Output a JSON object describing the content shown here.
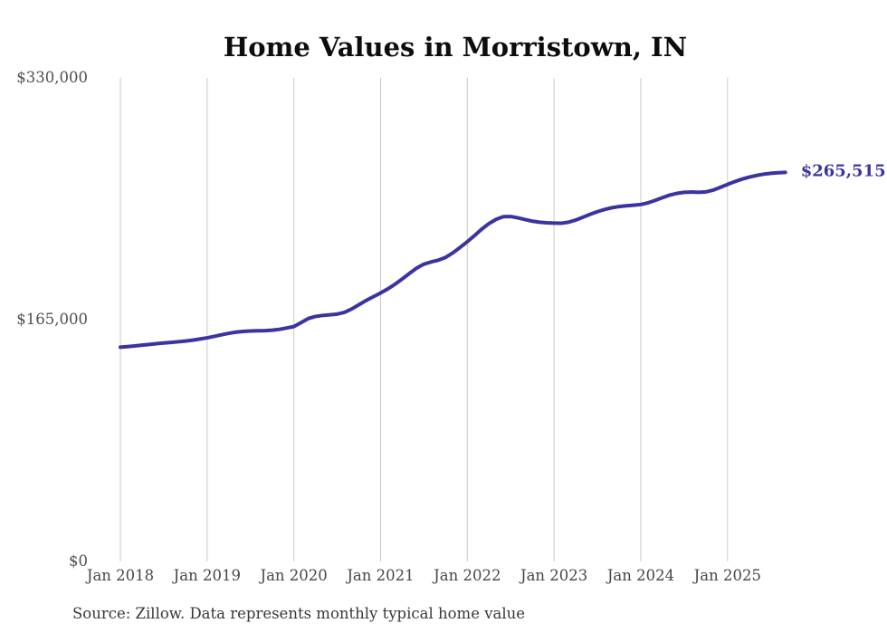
{
  "title": "Home Values in Morristown, IN",
  "source_note": "Source: Zillow. Data represents monthly typical home value",
  "colors": {
    "line": "#3a34a0",
    "grid": "#c9c9c9",
    "title": "#0d0d0d",
    "axis_label": "#4c4c4c",
    "source": "#383838",
    "background": "#ffffff"
  },
  "chart_data": {
    "type": "line",
    "title": "Home Values in Morristown, IN",
    "xlabel": "",
    "ylabel": "",
    "ylim": [
      0,
      330000
    ],
    "grid": "vertical-only",
    "legend": "none",
    "line_color": "#3a34a0",
    "end_annotation": "$265,515",
    "end_value": 265515,
    "y_tick_values": [
      0,
      165000,
      330000
    ],
    "y_tick_labels": [
      "$0",
      "$165,000",
      "$330,000"
    ],
    "x_tick_labels": [
      "Jan 2018",
      "Jan 2019",
      "Jan 2020",
      "Jan 2021",
      "Jan 2022",
      "Jan 2023",
      "Jan 2024",
      "Jan 2025"
    ],
    "series": [
      {
        "name": "Monthly typical home value",
        "x": [
          "2018-01",
          "2018-02",
          "2018-03",
          "2018-04",
          "2018-05",
          "2018-06",
          "2018-07",
          "2018-08",
          "2018-09",
          "2018-10",
          "2018-11",
          "2018-12",
          "2019-01",
          "2019-02",
          "2019-03",
          "2019-04",
          "2019-05",
          "2019-06",
          "2019-07",
          "2019-08",
          "2019-09",
          "2019-10",
          "2019-11",
          "2019-12",
          "2020-01",
          "2020-02",
          "2020-03",
          "2020-04",
          "2020-05",
          "2020-06",
          "2020-07",
          "2020-08",
          "2020-09",
          "2020-10",
          "2020-11",
          "2020-12",
          "2021-01",
          "2021-02",
          "2021-03",
          "2021-04",
          "2021-05",
          "2021-06",
          "2021-07",
          "2021-08",
          "2021-09",
          "2021-10",
          "2021-11",
          "2021-12",
          "2022-01",
          "2022-02",
          "2022-03",
          "2022-04",
          "2022-05",
          "2022-06",
          "2022-07",
          "2022-08",
          "2022-09",
          "2022-10",
          "2022-11",
          "2022-12",
          "2023-01",
          "2023-02",
          "2023-03",
          "2023-04",
          "2023-05",
          "2023-06",
          "2023-07",
          "2023-08",
          "2023-09",
          "2023-10",
          "2023-11",
          "2023-12",
          "2024-01",
          "2024-02",
          "2024-03",
          "2024-04",
          "2024-05",
          "2024-06",
          "2024-07",
          "2024-08",
          "2024-09",
          "2024-10",
          "2024-11",
          "2024-12",
          "2025-01",
          "2025-02",
          "2025-03",
          "2025-04",
          "2025-05",
          "2025-06",
          "2025-07",
          "2025-08",
          "2025-09"
        ],
        "values": [
          146200,
          146600,
          147100,
          147600,
          148100,
          148600,
          149100,
          149500,
          149900,
          150400,
          151000,
          151800,
          152600,
          153600,
          154700,
          155700,
          156500,
          157000,
          157300,
          157400,
          157500,
          157800,
          158400,
          159300,
          160300,
          163000,
          165800,
          167200,
          167900,
          168300,
          168800,
          170000,
          172300,
          175200,
          178100,
          180700,
          183200,
          186000,
          189200,
          192800,
          196600,
          200200,
          202900,
          204400,
          205600,
          207500,
          210600,
          214300,
          218200,
          222400,
          226800,
          230600,
          233500,
          235300,
          235400,
          234500,
          233300,
          232200,
          231500,
          231100,
          230900,
          230800,
          231500,
          233000,
          234900,
          236900,
          238700,
          240200,
          241400,
          242200,
          242700,
          243100,
          243600,
          244700,
          246400,
          248300,
          250000,
          251200,
          251900,
          252100,
          251900,
          252200,
          253400,
          255300,
          257300,
          259200,
          260900,
          262300,
          263400,
          264300,
          264900,
          265300,
          265515
        ]
      }
    ]
  }
}
